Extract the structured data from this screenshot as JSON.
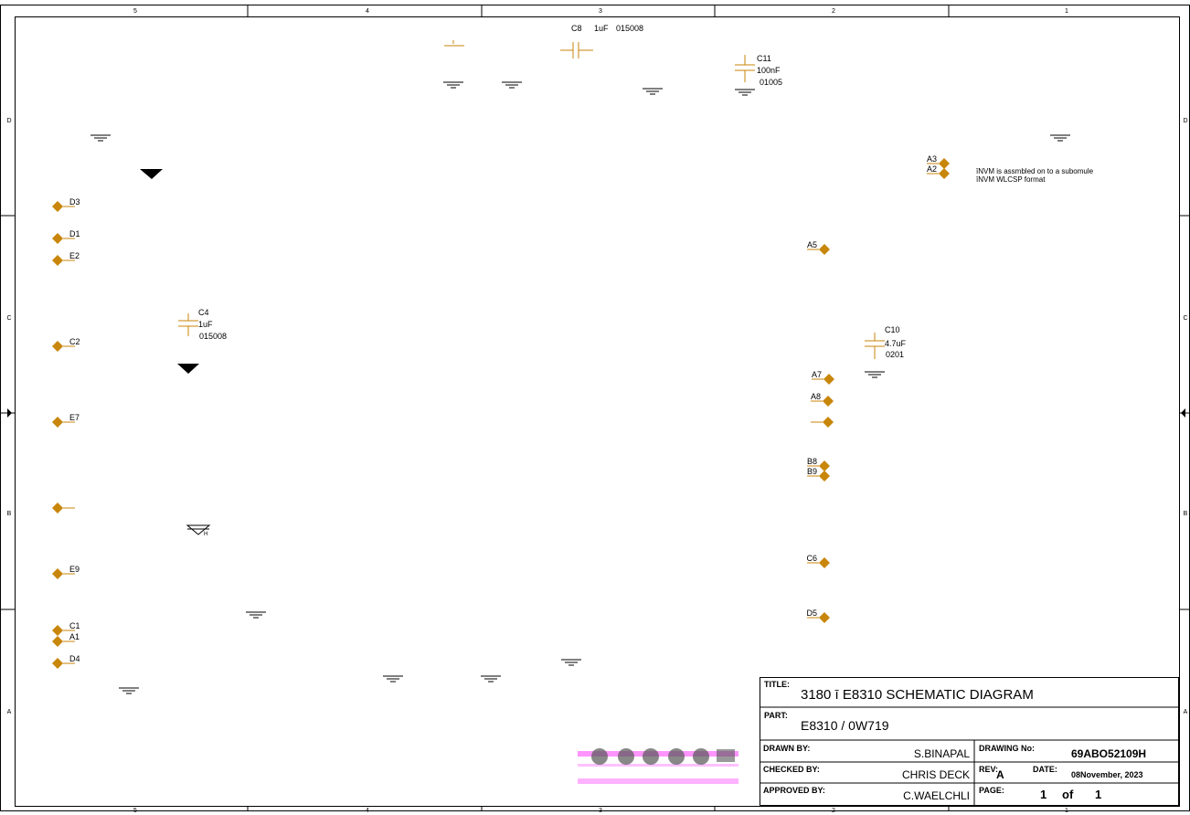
{
  "colors": {
    "component": "#c8860a",
    "line": "#000000",
    "magenta": "#ff00ff"
  },
  "border": {
    "col_labels": [
      "5",
      "4",
      "3",
      "2",
      "1"
    ],
    "row_labels": [
      "D",
      "C",
      "B",
      "A"
    ]
  },
  "notes": [
    "īNVM is assmbled on to a subomule",
    "īNVM WLCSP format"
  ],
  "capacitors": [
    {
      "ref": "C8",
      "value": "1uF",
      "package": "015008"
    },
    {
      "ref": "C11",
      "value": "100nF",
      "package": "01005"
    },
    {
      "ref": "C4",
      "value": "1uF",
      "package": "015008"
    },
    {
      "ref": "C10",
      "value": "4.7uF",
      "package": "0201"
    }
  ],
  "pins": [
    "D3",
    "D1",
    "E2",
    "C2",
    "E7",
    "",
    "E9",
    "C1",
    "A1",
    "D4",
    "A3",
    "A2",
    "A5",
    "A7",
    "A8",
    "",
    "B8",
    "B9",
    "C6",
    "D5"
  ],
  "title_block": {
    "title_label": "TITLE:",
    "title": "3180 ī E8310 SCHEMATIC DIAGRAM",
    "part_label": "PART:",
    "part": "E8310 / 0W719",
    "drawn_label": "DRAWN BY:",
    "drawn": "S.BINAPAL",
    "checked_label": "CHECKED BY:",
    "checked": "CHRIS DECK",
    "approved_label": "APPROVED BY:",
    "approved": "C.WAELCHLI",
    "drawing_no_label": "DRAWING No:",
    "drawing_no": "69ABO52109H",
    "rev_label": "REV:",
    "rev": "A",
    "date_label": "DATE:",
    "date": "08November, 2023",
    "page_label": "PAGE:",
    "page": "1",
    "of_label": "of",
    "pages": "1"
  }
}
